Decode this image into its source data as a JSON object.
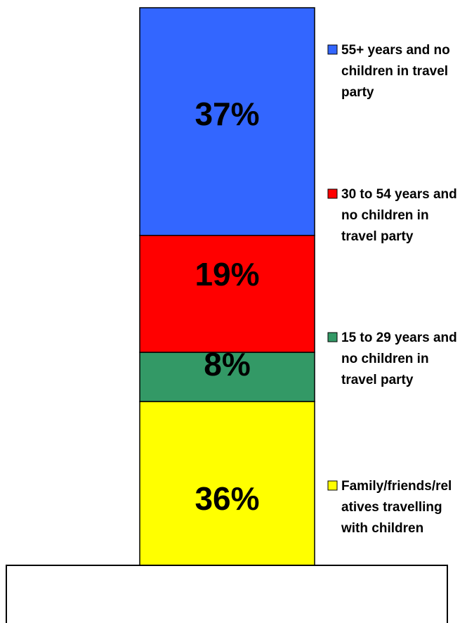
{
  "chart_data": {
    "type": "bar",
    "stacked": true,
    "percent": true,
    "categories": [
      ""
    ],
    "series": [
      {
        "name": "Family/friends/relatives travelling with children",
        "values": [
          36
        ],
        "label": "36%",
        "color": "#ffff00",
        "legend_lines": [
          "Family/friends/rel",
          "atives travelling",
          "with children"
        ]
      },
      {
        "name": "15 to 29 years and no children in travel party",
        "values": [
          8
        ],
        "label": "8%",
        "color": "#339966",
        "legend_lines": [
          "15 to 29 years and",
          "no children in",
          "travel party"
        ]
      },
      {
        "name": "30 to 54 years and no children in travel party",
        "values": [
          19
        ],
        "label": "19%",
        "color": "#ff0000",
        "legend_lines": [
          "30 to 54 years and",
          "no children in",
          "travel party"
        ]
      },
      {
        "name": "55+ years and no children in travel party",
        "values": [
          37
        ],
        "label": "37%",
        "color": "#3366ff",
        "legend_lines": [
          "55+ years and no",
          "children in travel",
          "party"
        ]
      }
    ],
    "legend": "right",
    "grid": false,
    "ylim": [
      0,
      100
    ]
  }
}
